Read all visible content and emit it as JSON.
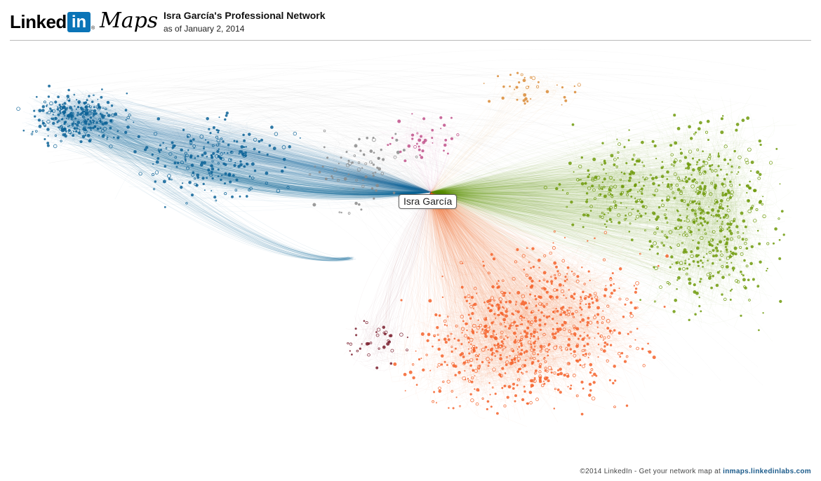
{
  "logo": {
    "linked": "Linked",
    "in": "in",
    "reg": "®",
    "maps": "Maps"
  },
  "header": {
    "title": "Isra García's Professional Network",
    "subtitle": "as of January 2, 2014"
  },
  "network": {
    "center_label": "Isra García",
    "colors": {
      "blue": "#0b6296",
      "orange": "#f4622a",
      "green": "#6e9a0a",
      "gray": "#8a8a8a",
      "pink": "#c0508a",
      "dark_red": "#7a1e2e",
      "gold": "#d98a35"
    }
  },
  "footer": {
    "text": "©2014 LinkedIn - Get your network map at ",
    "link": "inmaps.linkedinlabs.com"
  }
}
